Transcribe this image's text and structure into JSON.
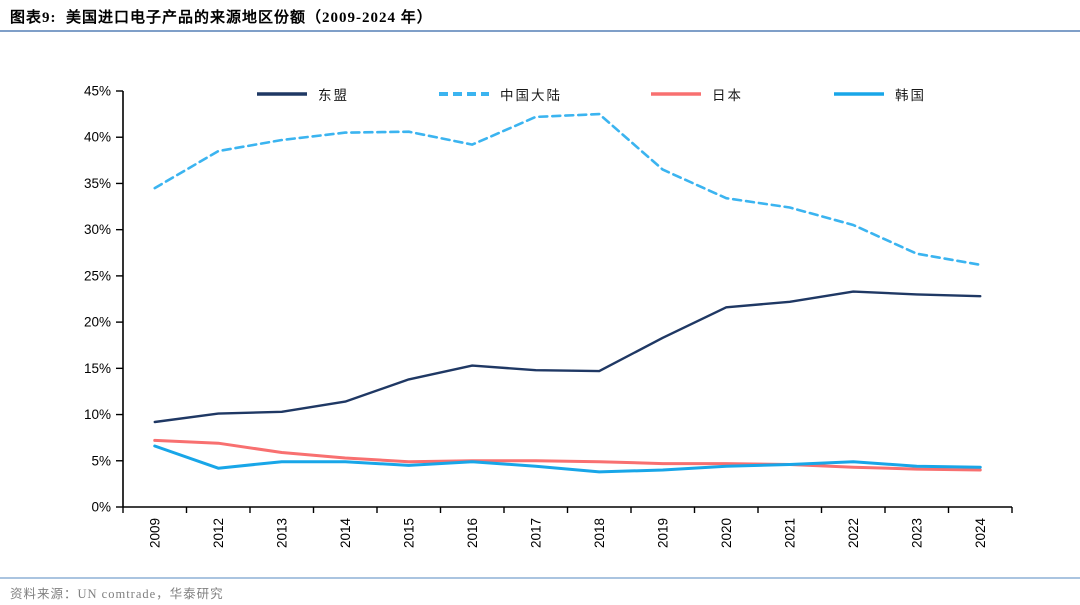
{
  "title": "图表9:  美国进口电子产品的来源地区份额（2009-2024 年）",
  "source": "资料来源：UN comtrade，华泰研究",
  "colors": {
    "title_rule": "#7f9fc8",
    "source_rule": "#aac4e0",
    "axis": "#000000"
  },
  "chart_data": {
    "type": "line",
    "title": "美国进口电子产品的来源地区份额（2009-2024 年）",
    "categories": [
      "2009",
      "2012",
      "2013",
      "2014",
      "2015",
      "2016",
      "2017",
      "2018",
      "2019",
      "2020",
      "2021",
      "2022",
      "2023",
      "2024"
    ],
    "series": [
      {
        "name": "东盟",
        "color": "#1f3864",
        "style": "solid",
        "width": 2.4,
        "values": [
          9.2,
          10.1,
          10.3,
          11.4,
          13.8,
          15.3,
          14.8,
          14.7,
          18.3,
          21.6,
          22.2,
          23.3,
          23.0,
          22.8
        ]
      },
      {
        "name": "中国大陆",
        "color": "#3bb4f0",
        "style": "dashed",
        "width": 2.6,
        "values": [
          34.5,
          38.5,
          39.7,
          40.5,
          40.6,
          39.2,
          42.2,
          42.5,
          36.5,
          33.4,
          32.4,
          30.5,
          27.4,
          26.2
        ]
      },
      {
        "name": "日本",
        "color": "#f87070",
        "style": "solid",
        "width": 3,
        "values": [
          7.2,
          6.9,
          5.9,
          5.3,
          4.9,
          5.0,
          5.0,
          4.9,
          4.7,
          4.7,
          4.6,
          4.3,
          4.1,
          4.0
        ]
      },
      {
        "name": "韩国",
        "color": "#18a6e8",
        "style": "solid",
        "width": 3,
        "values": [
          6.6,
          4.2,
          4.9,
          4.9,
          4.5,
          4.9,
          4.4,
          3.8,
          4.0,
          4.4,
          4.6,
          4.9,
          4.4,
          4.3
        ]
      }
    ],
    "xlabel": "",
    "ylabel": "",
    "ylim": [
      0,
      45
    ],
    "ytick_step": 5,
    "ytick_labels": [
      "0%",
      "5%",
      "10%",
      "15%",
      "20%",
      "25%",
      "30%",
      "35%",
      "40%",
      "45%"
    ],
    "grid": false,
    "legend_position": "top"
  }
}
